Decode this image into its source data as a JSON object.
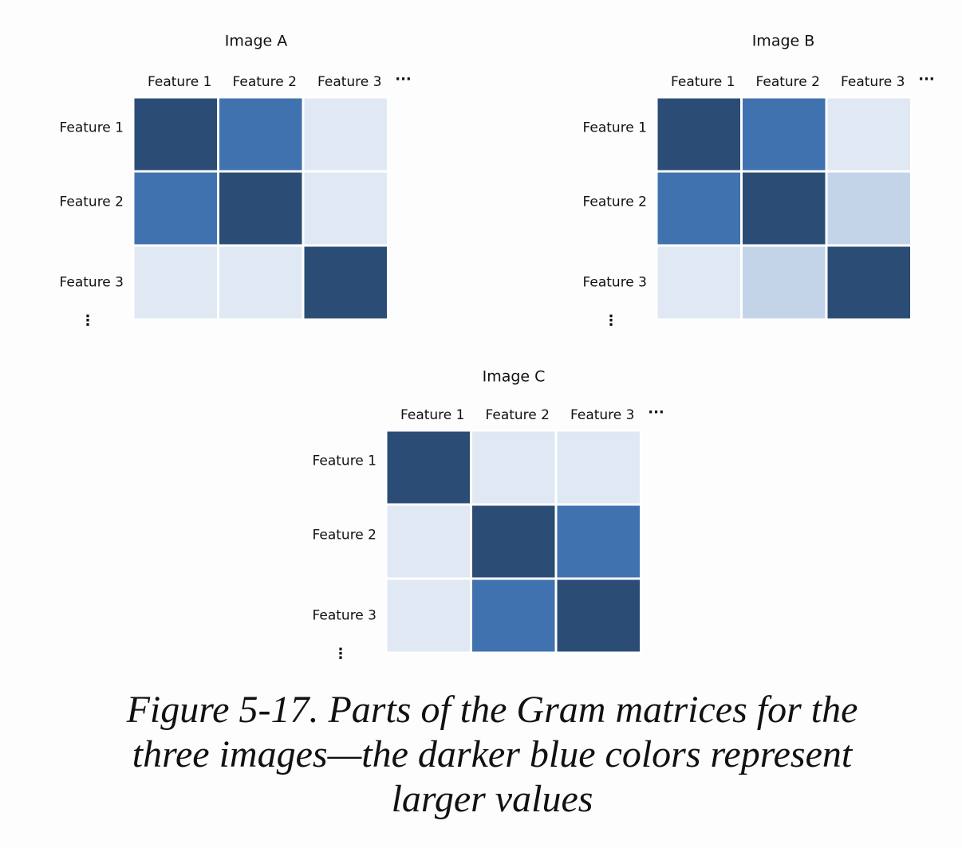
{
  "matrices": [
    {
      "title": "Image A",
      "columns": [
        "Feature 1",
        "Feature 2",
        "Feature 3"
      ],
      "more_columns": "···",
      "rows": [
        "Feature 1",
        "Feature 2",
        "Feature 3"
      ],
      "more_rows": "⋮",
      "cells": [
        [
          "#2b4c74",
          "#3f72ae",
          "#dfe8f3"
        ],
        [
          "#3f72ae",
          "#2b4c74",
          "#dfe8f3"
        ],
        [
          "#dfe8f3",
          "#dfe8f3",
          "#2b4c74"
        ]
      ]
    },
    {
      "title": "Image B",
      "columns": [
        "Feature 1",
        "Feature 2",
        "Feature 3"
      ],
      "more_columns": "···",
      "rows": [
        "Feature 1",
        "Feature 2",
        "Feature 3"
      ],
      "more_rows": "⋮",
      "cells": [
        [
          "#2b4c74",
          "#3f72ae",
          "#dfe8f3"
        ],
        [
          "#3f72ae",
          "#2b4c74",
          "#c3d4e9"
        ],
        [
          "#dfe8f3",
          "#c3d4e9",
          "#2b4c74"
        ]
      ]
    },
    {
      "title": "Image C",
      "columns": [
        "Feature 1",
        "Feature 2",
        "Feature 3"
      ],
      "more_columns": "···",
      "rows": [
        "Feature 1",
        "Feature 2",
        "Feature 3"
      ],
      "more_rows": "⋮",
      "cells": [
        [
          "#2b4c74",
          "#dfe8f3",
          "#dfe8f3"
        ],
        [
          "#dfe8f3",
          "#2b4c74",
          "#3f72ae"
        ],
        [
          "#dfe8f3",
          "#3f72ae",
          "#2b4c74"
        ]
      ]
    }
  ],
  "caption": [
    "Figure 5-17. Parts of the Gram matrices for the",
    "three images—the darker blue colors represent",
    "larger values"
  ]
}
